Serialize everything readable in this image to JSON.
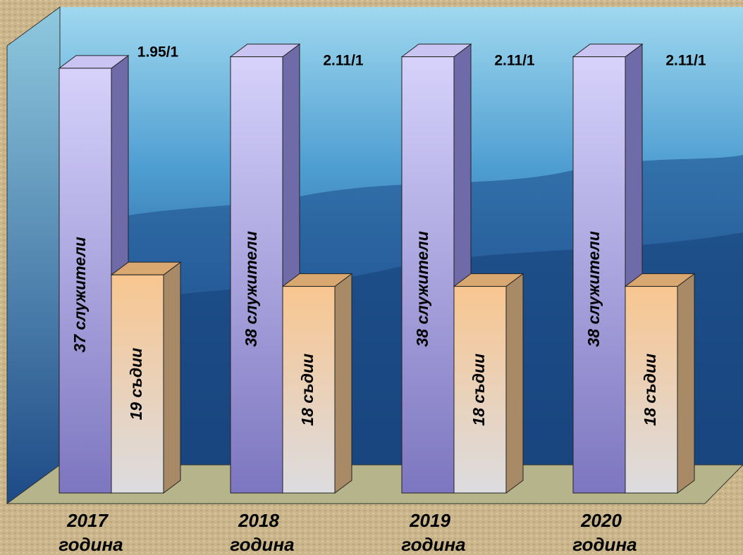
{
  "chart_data": {
    "type": "bar3d",
    "categories": [
      [
        "2017",
        "година"
      ],
      [
        "2018",
        "година"
      ],
      [
        "2019",
        "година"
      ],
      [
        "2020",
        "година"
      ]
    ],
    "series": [
      {
        "color": "#b9b3ea",
        "values": [
          37,
          38,
          38,
          38
        ],
        "value_labels": [
          "37 служители",
          "38 служители",
          "38 служители",
          "38 служители"
        ]
      },
      {
        "color": "#f4c894",
        "values": [
          19,
          18,
          18,
          18
        ],
        "value_labels": [
          "19 съдии",
          "18 съдии",
          "18 съдии",
          "18 съдии"
        ]
      }
    ],
    "annotations": [
      "1.95/1",
      "2.11/1",
      "2.11/1",
      "2.11/1"
    ]
  }
}
